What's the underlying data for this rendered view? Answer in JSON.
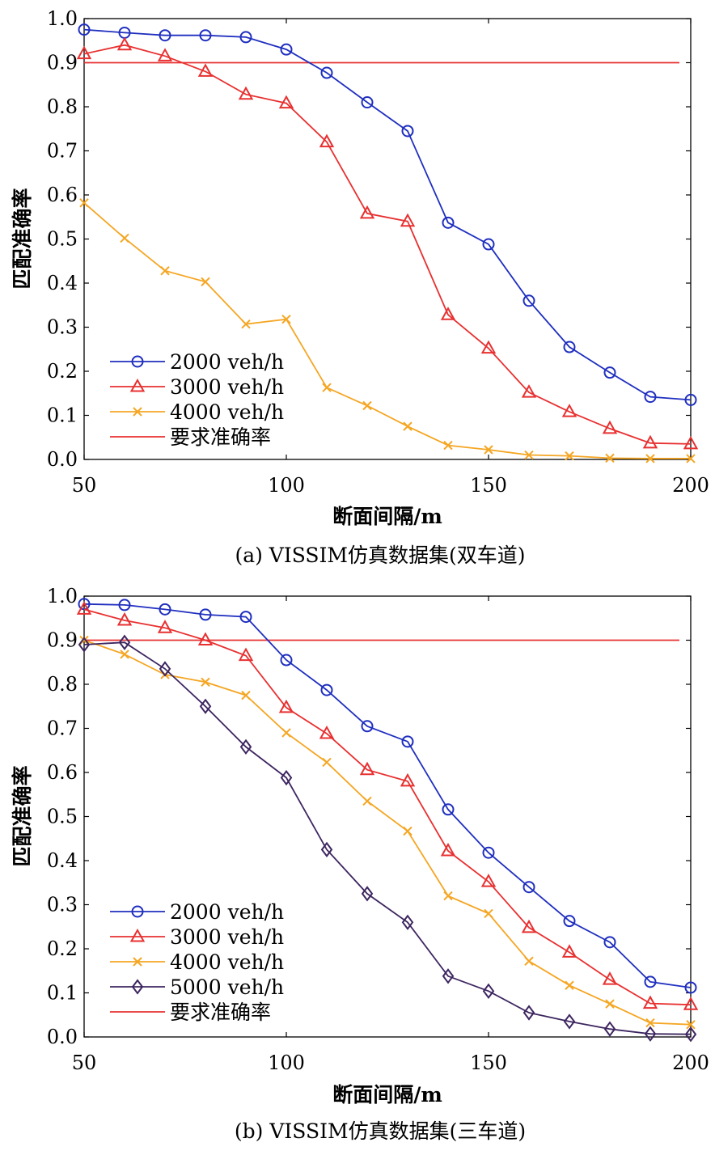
{
  "chart_data": [
    {
      "type": "line",
      "caption": "(a) VISSIM仿真数据集(双车道)",
      "xlabel": "断面间隔/m",
      "ylabel": "匹配准确率",
      "xlim": [
        50,
        200
      ],
      "ylim": [
        0,
        1.0
      ],
      "xticks": [
        "50",
        "100",
        "150",
        "200"
      ],
      "yticks": [
        "0.0",
        "0.1",
        "0.2",
        "0.3",
        "0.4",
        "0.5",
        "0.6",
        "0.7",
        "0.8",
        "0.9",
        "1.0"
      ],
      "grid": false,
      "legend_position": "bottom-left",
      "x": [
        50,
        60,
        70,
        80,
        90,
        100,
        110,
        120,
        130,
        140,
        150,
        160,
        170,
        180,
        190,
        200
      ],
      "series": [
        {
          "name": "2000 veh/h",
          "color": "#1f2fbf",
          "marker": "circle",
          "values": [
            0.975,
            0.968,
            0.962,
            0.962,
            0.958,
            0.93,
            0.877,
            0.81,
            0.745,
            0.537,
            0.488,
            0.36,
            0.255,
            0.197,
            0.142,
            0.135
          ]
        },
        {
          "name": "3000 veh/h",
          "color": "#e83030",
          "marker": "triangle",
          "values": [
            0.92,
            0.94,
            0.915,
            0.88,
            0.828,
            0.808,
            0.72,
            0.558,
            0.54,
            0.328,
            0.252,
            0.152,
            0.108,
            0.07,
            0.037,
            0.035
          ]
        },
        {
          "name": "4000 veh/h",
          "color": "#f5a623",
          "marker": "x",
          "values": [
            0.582,
            0.502,
            0.428,
            0.403,
            0.307,
            0.318,
            0.163,
            0.122,
            0.075,
            0.032,
            0.022,
            0.01,
            0.008,
            0.003,
            0.002,
            0.002
          ]
        }
      ],
      "reference_line": {
        "name": "要求准确率",
        "value": 0.9,
        "color": "#e83030"
      }
    },
    {
      "type": "line",
      "caption": "(b) VISSIM仿真数据集(三车道)",
      "xlabel": "断面间隔/m",
      "ylabel": "匹配准确率",
      "xlim": [
        50,
        200
      ],
      "ylim": [
        0,
        1.0
      ],
      "xticks": [
        "50",
        "100",
        "150",
        "200"
      ],
      "yticks": [
        "0.0",
        "0.1",
        "0.2",
        "0.3",
        "0.4",
        "0.5",
        "0.6",
        "0.7",
        "0.8",
        "0.9",
        "1.0"
      ],
      "grid": false,
      "legend_position": "bottom-left",
      "x": [
        50,
        60,
        70,
        80,
        90,
        100,
        110,
        120,
        130,
        140,
        150,
        160,
        170,
        180,
        190,
        200
      ],
      "series": [
        {
          "name": "2000 veh/h",
          "color": "#1f2fbf",
          "marker": "circle",
          "values": [
            0.982,
            0.98,
            0.97,
            0.958,
            0.953,
            0.855,
            0.787,
            0.705,
            0.67,
            0.516,
            0.418,
            0.34,
            0.263,
            0.215,
            0.125,
            0.112
          ]
        },
        {
          "name": "3000 veh/h",
          "color": "#e83030",
          "marker": "triangle",
          "values": [
            0.97,
            0.945,
            0.928,
            0.9,
            0.865,
            0.747,
            0.688,
            0.606,
            0.58,
            0.422,
            0.352,
            0.248,
            0.192,
            0.13,
            0.076,
            0.073
          ]
        },
        {
          "name": "4000 veh/h",
          "color": "#f5a623",
          "marker": "x",
          "values": [
            0.9,
            0.868,
            0.822,
            0.805,
            0.775,
            0.69,
            0.623,
            0.535,
            0.467,
            0.32,
            0.28,
            0.172,
            0.117,
            0.075,
            0.032,
            0.028
          ]
        },
        {
          "name": "5000 veh/h",
          "color": "#3d2660",
          "marker": "diamond",
          "values": [
            0.89,
            0.895,
            0.835,
            0.75,
            0.658,
            0.588,
            0.425,
            0.325,
            0.26,
            0.138,
            0.104,
            0.055,
            0.035,
            0.018,
            0.007,
            0.006
          ]
        }
      ],
      "reference_line": {
        "name": "要求准确率",
        "value": 0.9,
        "color": "#e83030"
      }
    }
  ]
}
